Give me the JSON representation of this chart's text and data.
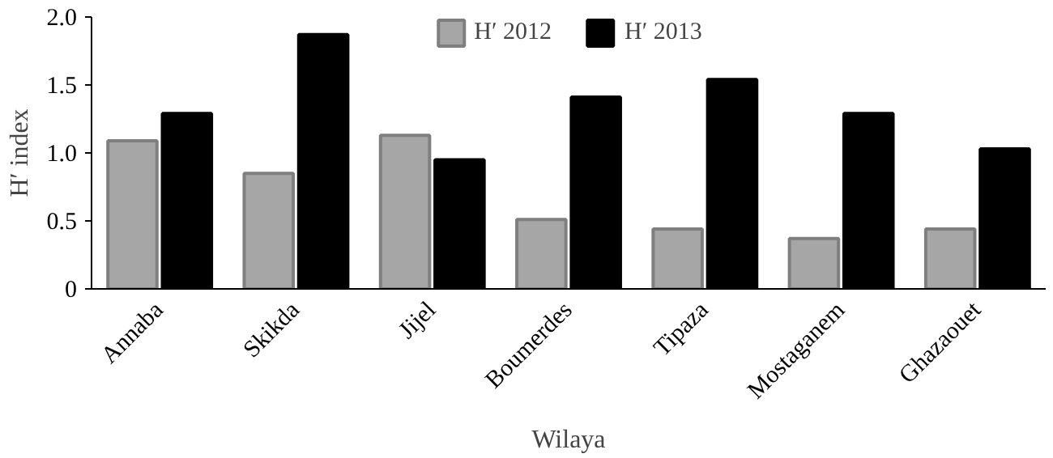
{
  "chart_data": {
    "type": "bar",
    "xlabel": "Wilaya",
    "ylabel": "H′ index",
    "categories": [
      "Annaba",
      "Skikda",
      "Jijel",
      "Boumerdes",
      "Tipaza",
      "Mostaganem",
      "Ghazaouet"
    ],
    "series": [
      {
        "name": "H′ 2012",
        "color": "#a6a6a6",
        "values": [
          1.09,
          0.85,
          1.13,
          0.51,
          0.44,
          0.37,
          0.44
        ]
      },
      {
        "name": "H′ 2013",
        "color": "#000000",
        "values": [
          1.29,
          1.87,
          0.95,
          1.41,
          1.54,
          1.29,
          1.03
        ]
      }
    ],
    "ylim": [
      0,
      2.0
    ],
    "yticks": [
      0,
      {
        "value": 0.5,
        "label": "0.5"
      },
      {
        "value": 1.0,
        "label": "1.0"
      },
      {
        "value": 1.5,
        "label": "1.5"
      },
      {
        "value": 2.0,
        "label": "2.0"
      }
    ],
    "grid": false,
    "legend": "top"
  }
}
